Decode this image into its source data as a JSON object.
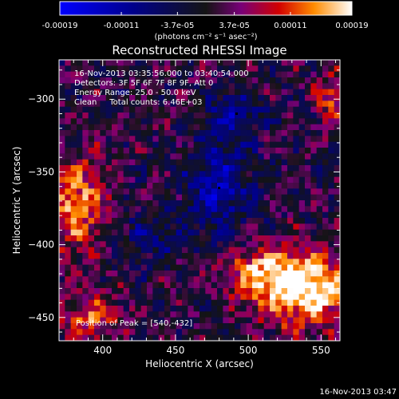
{
  "chart_data": {
    "type": "heatmap",
    "title": "Reconstructed RHESSI Image",
    "xlabel": "Heliocentric X (arcsec)",
    "ylabel": "Heliocentric Y (arcsec)",
    "xlim": [
      370,
      563
    ],
    "ylim": [
      -466,
      -273
    ],
    "x_ticks": [
      400,
      450,
      500,
      550
    ],
    "y_ticks": [
      -450,
      -400,
      -350,
      -300
    ],
    "colorbar": {
      "ticks": [
        "-0.00019",
        "-0.00011",
        "-3.7e-05",
        "3.7e-05",
        "0.00011",
        "0.00019"
      ],
      "tick_values": [
        -0.00019,
        -0.00011,
        -3.7e-05,
        3.7e-05,
        0.00011,
        0.00019
      ],
      "range": [
        -0.00019,
        0.00019
      ],
      "unit_label": "(photons cm⁻² s⁻¹ asec⁻²)"
    },
    "annotations": [
      "16-Nov-2013 03:35:56.000 to 03:40:54.000",
      "Detectors: 3F 5F 6F 7F 8F 9F, Att 0",
      "Energy Range: 25.0 - 50.0 keV",
      "Clean     Total counts: 6.46E+03"
    ],
    "peak_label": "Position of Peak = [540,-432]",
    "peak": [
      540,
      -432
    ],
    "sources": [
      {
        "x": 540,
        "y": -432,
        "sx": 22,
        "sy": 18,
        "amp": 0.00019
      },
      {
        "x": 510,
        "y": -420,
        "sx": 18,
        "sy": 12,
        "amp": 0.00013
      },
      {
        "x": 382,
        "y": -372,
        "sx": 14,
        "sy": 22,
        "amp": 0.00014
      },
      {
        "x": 392,
        "y": -450,
        "sx": 14,
        "sy": 12,
        "amp": 0.00011
      },
      {
        "x": 557,
        "y": -300,
        "sx": 8,
        "sy": 14,
        "amp": 9e-05
      },
      {
        "x": 480,
        "y": -360,
        "sx": 16,
        "sy": 22,
        "amp": -0.00012
      },
      {
        "x": 490,
        "y": -310,
        "sx": 14,
        "sy": 10,
        "amp": -0.0001
      },
      {
        "x": 430,
        "y": -395,
        "sx": 18,
        "sy": 12,
        "amp": -6e-05
      }
    ],
    "markers": [
      [
        480,
        -361
      ],
      [
        492,
        -310
      ]
    ]
  },
  "footer_timestamp": "16-Nov-2013 03:47"
}
